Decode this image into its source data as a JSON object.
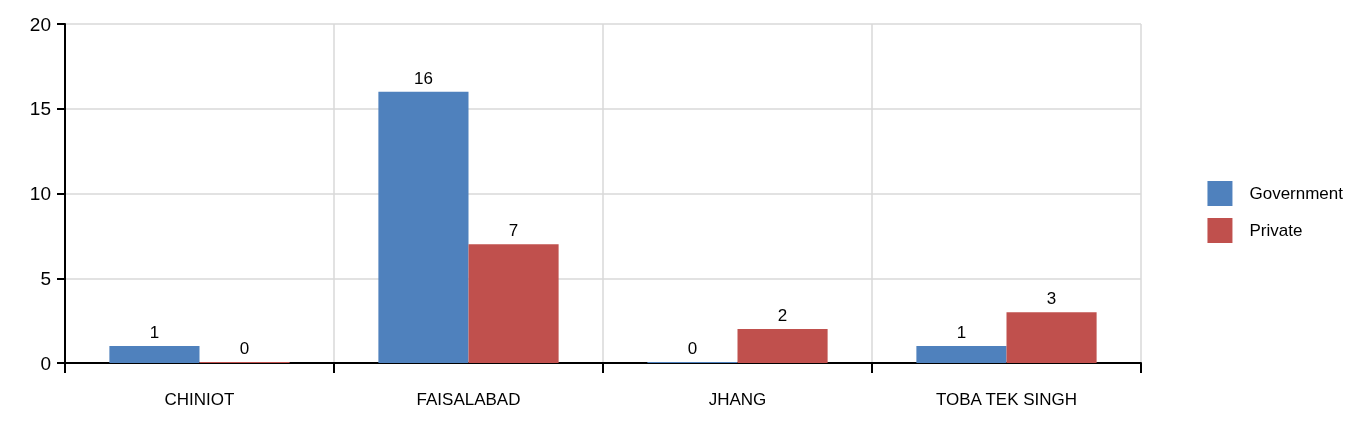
{
  "chart_data": {
    "type": "bar",
    "categories": [
      "CHINIOT",
      "FAISALABAD",
      "JHANG",
      "TOBA TEK SINGH"
    ],
    "series": [
      {
        "name": "Government",
        "color": "#4f81bd",
        "values": [
          1,
          16,
          0,
          1
        ]
      },
      {
        "name": "Private",
        "color": "#c0504d",
        "values": [
          0,
          7,
          2,
          3
        ]
      }
    ],
    "ylim": [
      0,
      20
    ],
    "yticks": [
      0,
      5,
      10,
      15,
      20
    ],
    "grid": true,
    "legend": "right",
    "data_labels": true
  }
}
